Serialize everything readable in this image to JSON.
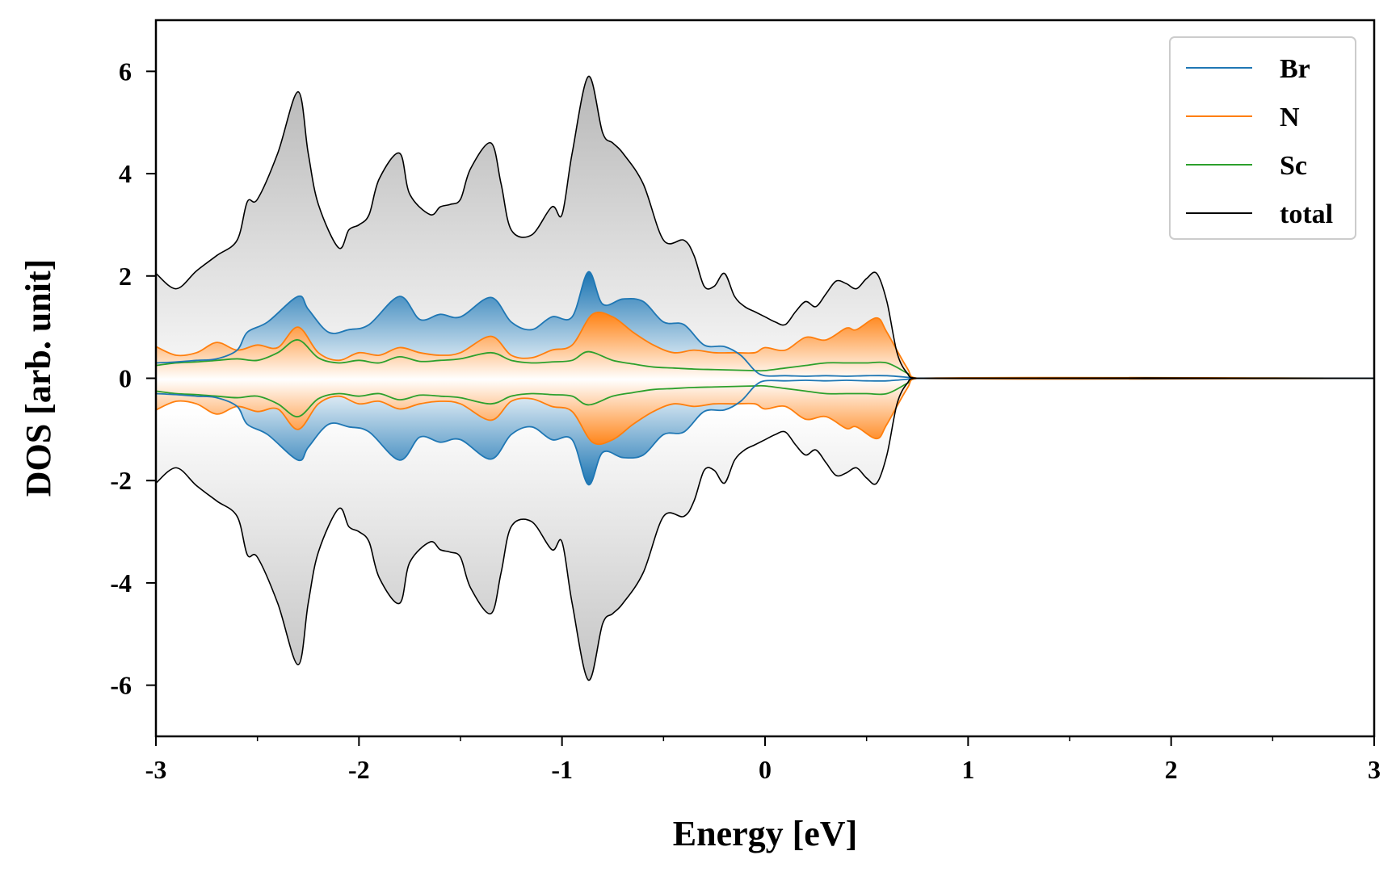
{
  "chart_data": {
    "type": "area",
    "title": "",
    "xlabel": "Energy [eV]",
    "ylabel": "DOS [arb. unit]",
    "xlim": [
      -3,
      3
    ],
    "ylim": [
      -7,
      7
    ],
    "grid": false,
    "legend_position": "top-right",
    "xticks": [
      -3,
      -2,
      -1,
      0,
      1,
      2,
      3
    ],
    "xtick_labels": [
      "-3",
      "-2",
      "-1",
      "0",
      "1",
      "2",
      "3"
    ],
    "yticks": [
      -6,
      -4,
      -2,
      0,
      2,
      4,
      6
    ],
    "ytick_labels": [
      "-6",
      "-4",
      "-2",
      "0",
      "2",
      "4",
      "6"
    ],
    "symmetric_spin": true,
    "series": [
      {
        "name": "Br",
        "color": "#1f77b4",
        "x": [
          -3.0,
          -2.9,
          -2.8,
          -2.7,
          -2.6,
          -2.55,
          -2.45,
          -2.3,
          -2.25,
          -2.15,
          -2.05,
          -1.95,
          -1.8,
          -1.7,
          -1.6,
          -1.5,
          -1.35,
          -1.25,
          -1.15,
          -1.05,
          -0.95,
          -0.87,
          -0.8,
          -0.7,
          -0.6,
          -0.5,
          -0.4,
          -0.3,
          -0.2,
          -0.12,
          -0.05,
          0.0,
          0.1,
          0.2,
          0.3,
          0.4,
          0.5,
          0.6,
          0.7,
          0.75,
          3.0
        ],
        "values": [
          0.3,
          0.32,
          0.35,
          0.38,
          0.55,
          0.9,
          1.1,
          1.6,
          1.35,
          0.9,
          0.95,
          1.05,
          1.6,
          1.15,
          1.25,
          1.2,
          1.58,
          1.1,
          0.95,
          1.2,
          1.2,
          2.08,
          1.45,
          1.55,
          1.5,
          1.1,
          1.05,
          0.65,
          0.62,
          0.45,
          0.15,
          0.05,
          0.05,
          0.04,
          0.05,
          0.04,
          0.05,
          0.05,
          0.02,
          0.0,
          0.0
        ]
      },
      {
        "name": "N",
        "color": "#ff7f0e",
        "x": [
          -3.0,
          -2.9,
          -2.8,
          -2.7,
          -2.6,
          -2.5,
          -2.4,
          -2.3,
          -2.2,
          -2.1,
          -2.0,
          -1.9,
          -1.8,
          -1.7,
          -1.6,
          -1.5,
          -1.35,
          -1.25,
          -1.15,
          -1.05,
          -0.95,
          -0.85,
          -0.75,
          -0.65,
          -0.55,
          -0.45,
          -0.35,
          -0.25,
          -0.15,
          -0.05,
          0.0,
          0.1,
          0.2,
          0.3,
          0.4,
          0.45,
          0.55,
          0.6,
          0.7,
          0.75,
          3.0
        ],
        "values": [
          0.62,
          0.45,
          0.5,
          0.7,
          0.55,
          0.65,
          0.6,
          1.0,
          0.5,
          0.35,
          0.5,
          0.45,
          0.6,
          0.5,
          0.45,
          0.5,
          0.82,
          0.45,
          0.4,
          0.55,
          0.65,
          1.25,
          1.2,
          0.9,
          0.65,
          0.5,
          0.55,
          0.5,
          0.5,
          0.5,
          0.6,
          0.55,
          0.8,
          0.75,
          0.98,
          0.95,
          1.18,
          0.9,
          0.2,
          0.0,
          0.0
        ]
      },
      {
        "name": "Sc",
        "color": "#2ca02c",
        "x": [
          -3.0,
          -2.9,
          -2.8,
          -2.7,
          -2.6,
          -2.5,
          -2.4,
          -2.3,
          -2.2,
          -2.1,
          -2.0,
          -1.9,
          -1.8,
          -1.7,
          -1.6,
          -1.5,
          -1.35,
          -1.25,
          -1.15,
          -1.05,
          -0.95,
          -0.87,
          -0.75,
          -0.65,
          -0.55,
          -0.45,
          -0.35,
          -0.25,
          -0.15,
          -0.05,
          0.0,
          0.1,
          0.2,
          0.3,
          0.4,
          0.5,
          0.6,
          0.7,
          0.75,
          3.0
        ],
        "values": [
          0.25,
          0.3,
          0.32,
          0.35,
          0.38,
          0.35,
          0.5,
          0.75,
          0.4,
          0.3,
          0.35,
          0.3,
          0.42,
          0.33,
          0.35,
          0.38,
          0.5,
          0.35,
          0.3,
          0.32,
          0.35,
          0.52,
          0.35,
          0.28,
          0.22,
          0.2,
          0.18,
          0.17,
          0.16,
          0.15,
          0.15,
          0.2,
          0.25,
          0.3,
          0.3,
          0.3,
          0.3,
          0.1,
          0.0,
          0.0
        ]
      },
      {
        "name": "total",
        "color": "#000000",
        "x": [
          -3.0,
          -2.9,
          -2.8,
          -2.7,
          -2.6,
          -2.55,
          -2.5,
          -2.4,
          -2.3,
          -2.25,
          -2.2,
          -2.1,
          -2.05,
          -2.0,
          -1.95,
          -1.9,
          -1.8,
          -1.75,
          -1.65,
          -1.6,
          -1.55,
          -1.5,
          -1.45,
          -1.35,
          -1.3,
          -1.25,
          -1.15,
          -1.05,
          -1.0,
          -0.95,
          -0.87,
          -0.8,
          -0.75,
          -0.7,
          -0.6,
          -0.5,
          -0.4,
          -0.35,
          -0.3,
          -0.25,
          -0.2,
          -0.15,
          -0.1,
          -0.05,
          0.0,
          0.05,
          0.1,
          0.15,
          0.2,
          0.25,
          0.3,
          0.35,
          0.4,
          0.45,
          0.5,
          0.55,
          0.6,
          0.65,
          0.7,
          0.75,
          3.0
        ],
        "values": [
          2.05,
          1.75,
          2.1,
          2.4,
          2.7,
          3.45,
          3.5,
          4.4,
          5.6,
          4.4,
          3.4,
          2.55,
          2.9,
          3.0,
          3.2,
          3.9,
          4.4,
          3.6,
          3.2,
          3.35,
          3.4,
          3.5,
          4.1,
          4.6,
          3.8,
          2.9,
          2.8,
          3.35,
          3.2,
          4.4,
          5.9,
          4.8,
          4.6,
          4.4,
          3.8,
          2.7,
          2.7,
          2.4,
          1.8,
          1.8,
          2.05,
          1.6,
          1.4,
          1.3,
          1.2,
          1.1,
          1.05,
          1.3,
          1.5,
          1.4,
          1.65,
          1.9,
          1.85,
          1.75,
          1.95,
          2.05,
          1.5,
          0.5,
          0.1,
          0.0,
          0.0
        ]
      }
    ]
  }
}
